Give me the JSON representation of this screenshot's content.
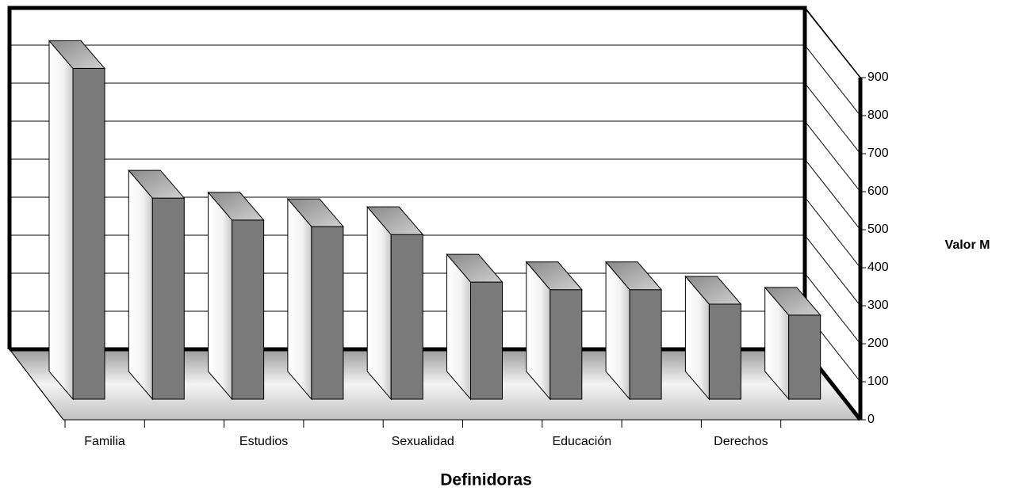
{
  "chart_data": {
    "type": "bar3d",
    "x_label": "Definidoras",
    "y_label": "Valor M",
    "categories": [
      "Familia",
      null,
      "Estudios",
      null,
      "Sexualidad",
      null,
      "Educación",
      null,
      "Derechos",
      null
    ],
    "values": [
      870,
      529,
      471,
      454,
      433,
      308,
      288,
      288,
      250,
      221
    ],
    "color": "#7a7a7a",
    "ylim": [
      0,
      900
    ],
    "yticks": [
      0,
      100,
      200,
      300,
      400,
      500,
      600,
      700,
      800,
      900
    ],
    "grid": true
  }
}
